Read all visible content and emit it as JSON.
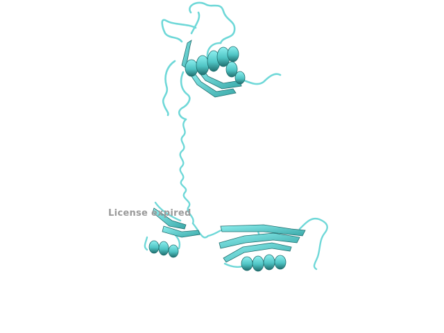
{
  "viewer": {
    "watermark_text": "License expired"
  },
  "colors": {
    "background": "#ffffff",
    "cartoon": "#5fd2d2",
    "cartoon_shadow": "#1f6d6d",
    "coil": "#7fdede",
    "watermark": "#9a9a9a"
  },
  "molecule": {
    "representation": "cartoon",
    "elements": [
      "helix",
      "beta-sheet",
      "coil"
    ]
  }
}
